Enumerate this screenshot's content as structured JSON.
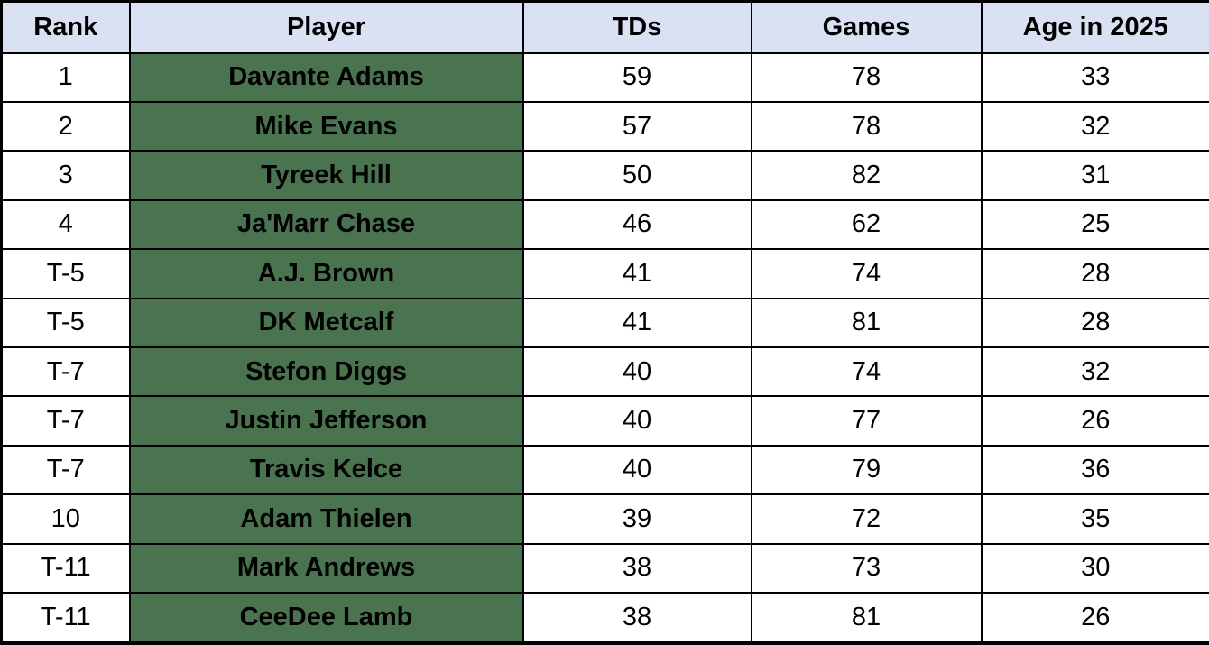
{
  "colors": {
    "header_bg": "#D9E1F2",
    "player_cell_bg": "#4A734F",
    "border": "#000000",
    "row_bg": "#FFFFFF",
    "text": "#000000"
  },
  "table": {
    "headers": [
      "Rank",
      "Player",
      "TDs",
      "Games",
      "Age in 2025"
    ],
    "rows": [
      {
        "rank": "1",
        "player": "Davante Adams",
        "tds": "59",
        "games": "78",
        "age": "33"
      },
      {
        "rank": "2",
        "player": "Mike Evans",
        "tds": "57",
        "games": "78",
        "age": "32"
      },
      {
        "rank": "3",
        "player": "Tyreek Hill",
        "tds": "50",
        "games": "82",
        "age": "31"
      },
      {
        "rank": "4",
        "player": "Ja'Marr Chase",
        "tds": "46",
        "games": "62",
        "age": "25"
      },
      {
        "rank": "T-5",
        "player": "A.J. Brown",
        "tds": "41",
        "games": "74",
        "age": "28"
      },
      {
        "rank": "T-5",
        "player": "DK Metcalf",
        "tds": "41",
        "games": "81",
        "age": "28"
      },
      {
        "rank": "T-7",
        "player": "Stefon Diggs",
        "tds": "40",
        "games": "74",
        "age": "32"
      },
      {
        "rank": "T-7",
        "player": "Justin Jefferson",
        "tds": "40",
        "games": "77",
        "age": "26"
      },
      {
        "rank": "T-7",
        "player": "Travis Kelce",
        "tds": "40",
        "games": "79",
        "age": "36"
      },
      {
        "rank": "10",
        "player": "Adam Thielen",
        "tds": "39",
        "games": "72",
        "age": "35"
      },
      {
        "rank": "T-11",
        "player": "Mark Andrews",
        "tds": "38",
        "games": "73",
        "age": "30"
      },
      {
        "rank": "T-11",
        "player": "CeeDee Lamb",
        "tds": "38",
        "games": "81",
        "age": "26"
      }
    ]
  },
  "chart_data": {
    "type": "table",
    "title": "",
    "columns": [
      "Rank",
      "Player",
      "TDs",
      "Games",
      "Age in 2025"
    ],
    "rows": [
      [
        "1",
        "Davante Adams",
        59,
        78,
        33
      ],
      [
        "2",
        "Mike Evans",
        57,
        78,
        32
      ],
      [
        "3",
        "Tyreek Hill",
        50,
        82,
        31
      ],
      [
        "4",
        "Ja'Marr Chase",
        46,
        62,
        25
      ],
      [
        "T-5",
        "A.J. Brown",
        41,
        74,
        28
      ],
      [
        "T-5",
        "DK Metcalf",
        41,
        81,
        28
      ],
      [
        "T-7",
        "Stefon Diggs",
        40,
        74,
        32
      ],
      [
        "T-7",
        "Justin Jefferson",
        40,
        77,
        26
      ],
      [
        "T-7",
        "Travis Kelce",
        40,
        79,
        36
      ],
      [
        "10",
        "Adam Thielen",
        39,
        72,
        35
      ],
      [
        "T-11",
        "Mark Andrews",
        38,
        73,
        30
      ],
      [
        "T-11",
        "CeeDee Lamb",
        38,
        81,
        26
      ]
    ],
    "layout_hints": {
      "header_bg": "#D9E1F2",
      "player_column_bg": "#4A734F",
      "grid": "on",
      "alignment": "center"
    }
  }
}
